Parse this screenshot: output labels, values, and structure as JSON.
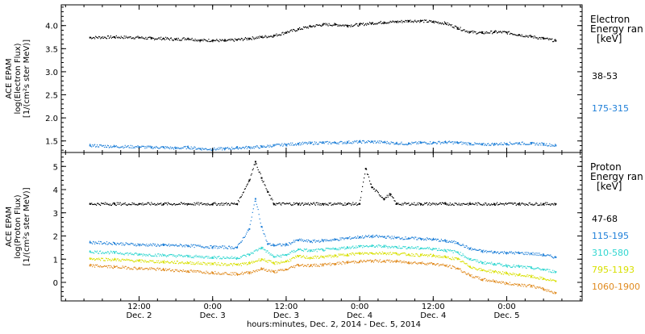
{
  "chart_data": {
    "type": "scatter",
    "time_range_label": "hours:minutes, Dec.  2, 2014 - Dec.  5, 2014",
    "x_ticks": [
      {
        "hh": "12:00",
        "day": "Dec. 2"
      },
      {
        "hh": "0:00",
        "day": "Dec. 3"
      },
      {
        "hh": "12:00",
        "day": "Dec. 3"
      },
      {
        "hh": "0:00",
        "day": "Dec. 4"
      },
      {
        "hh": "12:00",
        "day": "Dec. 4"
      },
      {
        "hh": "0:00",
        "day": "Dec. 5"
      }
    ],
    "x_hours_ticks": [
      12,
      24,
      36,
      48,
      60,
      72
    ],
    "x_hours_range": [
      -0.7,
      84.3
    ],
    "panels": [
      {
        "id": "electron",
        "ylabel_lines": [
          "ACE EPAM",
          "log(Electron Flux)",
          "[1/(cm²s ster MeV)]"
        ],
        "ylim": [
          1.25,
          4.45
        ],
        "yticks": [
          "1.5",
          "2.0",
          "2.5",
          "3.0",
          "3.5",
          "4.0"
        ],
        "ytick_values": [
          1.5,
          2.0,
          2.5,
          3.0,
          3.5,
          4.0
        ],
        "legend_title": [
          "Electron",
          "Energy ran",
          "[keV]"
        ],
        "series": [
          {
            "name": "38-53",
            "color": "#000000",
            "x": [
              4,
              8,
              12,
              14,
              16,
              18,
              20,
              22,
              24,
              26,
              28,
              30,
              32,
              34,
              36,
              38,
              40,
              42,
              44,
              46,
              48,
              50,
              52,
              54,
              56,
              58,
              60,
              62,
              64,
              66,
              68,
              70,
              72,
              74,
              76,
              78,
              80
            ],
            "y": [
              3.74,
              3.75,
              3.74,
              3.72,
              3.72,
              3.7,
              3.72,
              3.68,
              3.68,
              3.67,
              3.69,
              3.72,
              3.75,
              3.78,
              3.85,
              3.92,
              3.98,
              4.02,
              4.02,
              4.0,
              4.02,
              4.05,
              4.07,
              4.08,
              4.1,
              4.1,
              4.08,
              4.05,
              3.95,
              3.86,
              3.84,
              3.86,
              3.85,
              3.8,
              3.76,
              3.72,
              3.67
            ]
          },
          {
            "name": "175-315",
            "color": "#1e7fd8",
            "x": [
              4,
              8,
              12,
              14,
              16,
              18,
              20,
              22,
              24,
              26,
              28,
              30,
              32,
              34,
              36,
              38,
              40,
              42,
              44,
              46,
              48,
              50,
              52,
              54,
              56,
              58,
              60,
              62,
              64,
              66,
              68,
              70,
              72,
              74,
              76,
              78,
              80
            ],
            "y": [
              1.4,
              1.38,
              1.37,
              1.36,
              1.36,
              1.34,
              1.36,
              1.33,
              1.32,
              1.33,
              1.35,
              1.36,
              1.37,
              1.4,
              1.42,
              1.44,
              1.45,
              1.46,
              1.46,
              1.47,
              1.48,
              1.48,
              1.47,
              1.45,
              1.44,
              1.46,
              1.46,
              1.47,
              1.46,
              1.44,
              1.42,
              1.43,
              1.44,
              1.45,
              1.44,
              1.43,
              1.4
            ]
          }
        ]
      },
      {
        "id": "proton",
        "ylabel_lines": [
          "ACE EPAM",
          "log(Proton Flux)",
          "[1/(cm²s ster MeV)]"
        ],
        "ylim": [
          -0.8,
          5.6
        ],
        "yticks": [
          "0",
          "1",
          "2",
          "3",
          "4",
          "5"
        ],
        "ytick_values": [
          0,
          1,
          2,
          3,
          4,
          5
        ],
        "legend_title": [
          "Proton",
          "Energy ran",
          "[keV]"
        ],
        "series": [
          {
            "name": "47-68",
            "color": "#000000",
            "x": [
              4,
              8,
              12,
              16,
              20,
              24,
              28,
              30,
              31,
              32,
              33,
              34,
              38,
              42,
              46,
              48,
              49,
              50,
              52,
              53,
              54,
              58,
              62,
              66,
              70,
              74,
              78,
              80
            ],
            "y": [
              3.38,
              3.38,
              3.38,
              3.38,
              3.38,
              3.38,
              3.38,
              4.4,
              5.2,
              4.5,
              3.9,
              3.38,
              3.38,
              3.38,
              3.38,
              3.38,
              4.9,
              4.1,
              3.6,
              3.8,
              3.38,
              3.38,
              3.38,
              3.38,
              3.38,
              3.38,
              3.38,
              3.38
            ]
          },
          {
            "name": "115-195",
            "color": "#1e7fd8",
            "x": [
              4,
              8,
              12,
              16,
              20,
              24,
              28,
              30,
              31,
              32,
              33,
              34,
              36,
              38,
              40,
              42,
              44,
              46,
              48,
              50,
              52,
              54,
              56,
              58,
              60,
              62,
              64,
              66,
              68,
              70,
              72,
              74,
              76,
              78,
              80
            ],
            "y": [
              1.72,
              1.68,
              1.62,
              1.6,
              1.58,
              1.52,
              1.5,
              2.3,
              3.6,
              2.4,
              1.65,
              1.6,
              1.62,
              1.82,
              1.76,
              1.8,
              1.84,
              1.9,
              1.95,
              1.98,
              1.96,
              1.92,
              1.9,
              1.88,
              1.85,
              1.78,
              1.7,
              1.45,
              1.34,
              1.3,
              1.28,
              1.26,
              1.24,
              1.18,
              1.08
            ]
          },
          {
            "name": "310-580",
            "color": "#30d6d0",
            "x": [
              4,
              8,
              12,
              16,
              20,
              24,
              28,
              30,
              32,
              34,
              36,
              38,
              40,
              42,
              44,
              46,
              48,
              50,
              52,
              54,
              56,
              58,
              60,
              62,
              64,
              66,
              68,
              70,
              72,
              74,
              76,
              78,
              80
            ],
            "y": [
              1.32,
              1.28,
              1.2,
              1.17,
              1.12,
              1.08,
              1.05,
              1.2,
              1.5,
              1.1,
              1.18,
              1.42,
              1.36,
              1.4,
              1.44,
              1.5,
              1.55,
              1.56,
              1.55,
              1.52,
              1.5,
              1.47,
              1.45,
              1.38,
              1.3,
              1.0,
              0.85,
              0.8,
              0.72,
              0.68,
              0.62,
              0.55,
              0.45
            ]
          },
          {
            "name": "795-1193",
            "color": "#d8e000",
            "x": [
              4,
              8,
              12,
              16,
              20,
              24,
              28,
              30,
              32,
              34,
              36,
              38,
              40,
              42,
              44,
              46,
              48,
              50,
              52,
              54,
              56,
              58,
              60,
              62,
              64,
              66,
              68,
              70,
              72,
              74,
              76,
              78,
              80
            ],
            "y": [
              1.02,
              0.98,
              0.92,
              0.88,
              0.84,
              0.8,
              0.76,
              0.82,
              1.0,
              0.82,
              0.9,
              1.12,
              1.06,
              1.1,
              1.14,
              1.2,
              1.24,
              1.26,
              1.26,
              1.24,
              1.2,
              1.17,
              1.15,
              1.08,
              1.0,
              0.68,
              0.52,
              0.46,
              0.38,
              0.32,
              0.25,
              0.15,
              0.05
            ]
          },
          {
            "name": "1060-1900",
            "color": "#e08a1e",
            "x": [
              4,
              8,
              12,
              16,
              20,
              24,
              28,
              30,
              32,
              34,
              36,
              38,
              40,
              42,
              44,
              46,
              48,
              50,
              52,
              54,
              56,
              58,
              60,
              62,
              64,
              66,
              68,
              70,
              72,
              74,
              76,
              78,
              80
            ],
            "y": [
              0.72,
              0.66,
              0.6,
              0.55,
              0.48,
              0.42,
              0.36,
              0.42,
              0.58,
              0.45,
              0.55,
              0.75,
              0.72,
              0.76,
              0.8,
              0.86,
              0.9,
              0.92,
              0.92,
              0.9,
              0.86,
              0.83,
              0.8,
              0.72,
              0.6,
              0.3,
              0.12,
              0.05,
              -0.05,
              -0.1,
              -0.15,
              -0.3,
              -0.45
            ]
          }
        ]
      }
    ]
  }
}
